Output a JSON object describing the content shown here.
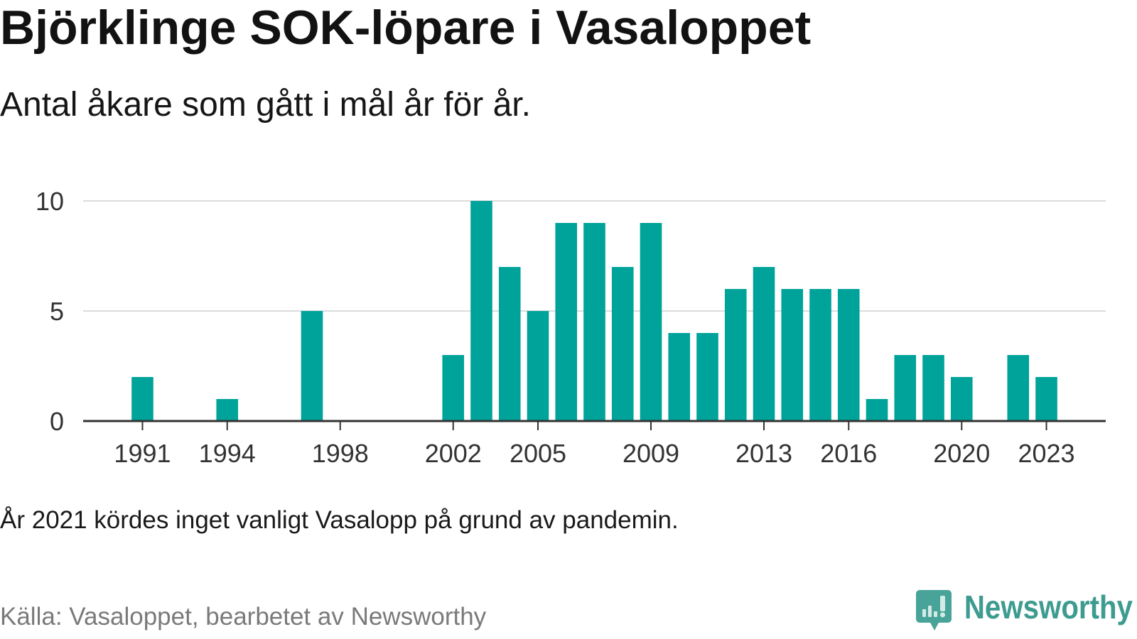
{
  "chart_data": {
    "type": "bar",
    "title": "Björklinge SOK-löpare i Vasaloppet",
    "subtitle": "Antal åkare som gått i mål år för år.",
    "x": [
      1991,
      1994,
      1997,
      2002,
      2003,
      2004,
      2005,
      2006,
      2007,
      2008,
      2009,
      2010,
      2011,
      2012,
      2013,
      2014,
      2015,
      2016,
      2017,
      2018,
      2019,
      2020,
      2022,
      2023
    ],
    "values": [
      2,
      1,
      5,
      3,
      10,
      7,
      5,
      9,
      9,
      7,
      9,
      4,
      4,
      6,
      7,
      6,
      6,
      6,
      1,
      3,
      3,
      2,
      3,
      2
    ],
    "x_ticks": [
      1991,
      1994,
      1998,
      2002,
      2005,
      2009,
      2013,
      2016,
      2020,
      2023
    ],
    "y_ticks": [
      0,
      5,
      10
    ],
    "xlim": [
      1988.9,
      2025.1
    ],
    "ylim": [
      0,
      10
    ],
    "grid": {
      "x": false,
      "y": true
    }
  },
  "note": "År 2021 kördes inget vanligt Vasalopp på grund av pandemin.",
  "source": "Källa: Vasaloppet, bearbetet av Newsworthy",
  "logo": {
    "text": "Newsworthy",
    "icon": "chat-bubble-bar-chart-icon"
  },
  "colors": {
    "bar": "#00a39a",
    "title": "#121212",
    "tick_text": "#333333",
    "source_text": "#7a7a7a",
    "gridline": "#dcdcdc",
    "axis": "#333333",
    "logo": "#3d9b90"
  }
}
